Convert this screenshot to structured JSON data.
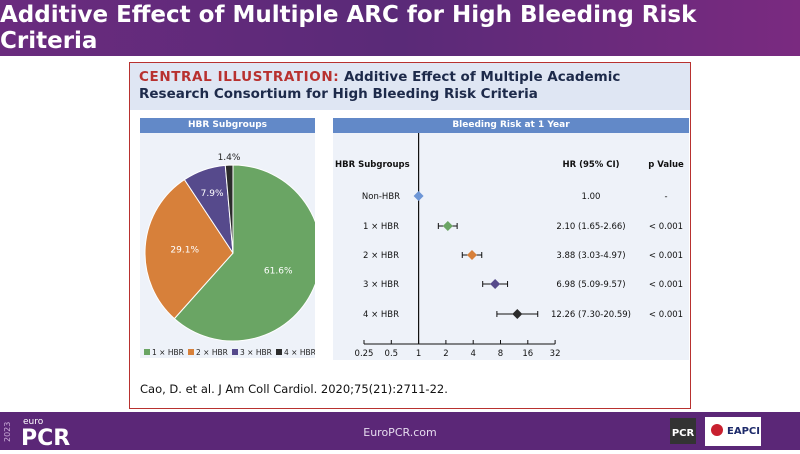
{
  "slide_title": "Additive Effect of Multiple ARC for High Bleeding Risk Criteria",
  "card": {
    "label": "CENTRAL ILLUSTRATION:",
    "title": "Additive Effect of Multiple Academic Research Consortium for High Bleeding Risk Criteria",
    "citation": "Cao, D. et al. J Am Coll Cardiol. 2020;75(21):2711-22."
  },
  "footer": {
    "year": "2023",
    "brand_small": "euro",
    "brand": "PCR",
    "url": "EuroPCR.com",
    "logo_pcr": "PCR",
    "logo_eapci": "EAPCI"
  },
  "chart_data": [
    {
      "type": "pie",
      "title": "HBR Subgroups",
      "labels": [
        "1 × HBR",
        "2 × HBR",
        "3 × HBR",
        "4 × HBR"
      ],
      "values": [
        61.6,
        29.1,
        7.9,
        1.4
      ],
      "value_labels": [
        "61.6%",
        "29.1%",
        "7.9%",
        "1.4%"
      ],
      "colors": [
        "#6aa564",
        "#d7803a",
        "#564a8c",
        "#2b2b2b"
      ],
      "legend": "bottom"
    },
    {
      "type": "forest",
      "title": "Bleeding Risk at 1 Year",
      "col_headers": {
        "group": "HBR Subgroups",
        "hr": "HR (95% CI)",
        "p": "p Value"
      },
      "rows": [
        {
          "label": "Non-HBR",
          "hr": 1.0,
          "lo": null,
          "hi": null,
          "text": "1.00",
          "p": "-",
          "color": "#6d96d6"
        },
        {
          "label": "1 × HBR",
          "hr": 2.1,
          "lo": 1.65,
          "hi": 2.66,
          "text": "2.10 (1.65-2.66)",
          "p": "< 0.001",
          "color": "#6aa564"
        },
        {
          "label": "2 × HBR",
          "hr": 3.88,
          "lo": 3.03,
          "hi": 4.97,
          "text": "3.88 (3.03-4.97)",
          "p": "< 0.001",
          "color": "#d7803a"
        },
        {
          "label": "3 × HBR",
          "hr": 6.98,
          "lo": 5.09,
          "hi": 9.57,
          "text": "6.98 (5.09-9.57)",
          "p": "< 0.001",
          "color": "#564a8c"
        },
        {
          "label": "4 × HBR",
          "hr": 12.26,
          "lo": 7.3,
          "hi": 20.59,
          "text": "12.26 (7.30-20.59)",
          "p": "< 0.001",
          "color": "#2b2b2b"
        }
      ],
      "xscale": "log2",
      "xlim": [
        0.25,
        32
      ],
      "xticks": [
        "0.25",
        "0.5",
        "1",
        "2",
        "4",
        "8",
        "16",
        "32"
      ]
    }
  ]
}
